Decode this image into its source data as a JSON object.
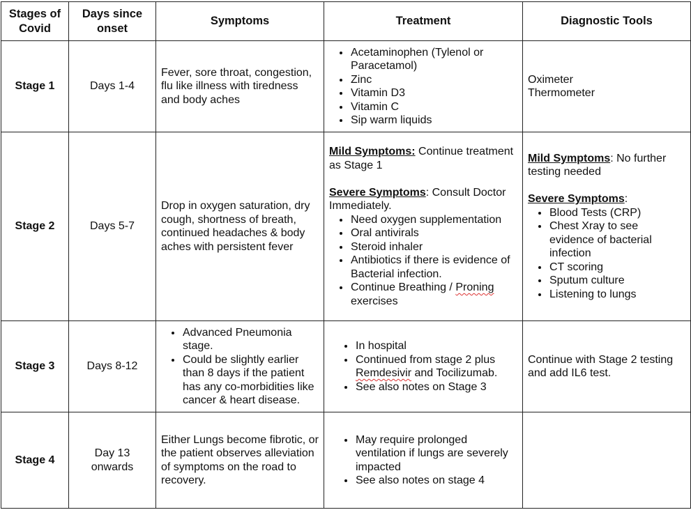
{
  "headers": [
    "Stages of Covid",
    "Days since onset",
    "Symptoms",
    "Treatment",
    "Diagnostic Tools"
  ],
  "rows": [
    {
      "stage": "Stage 1",
      "days": "Days 1-4",
      "symptoms": "Fever, sore throat, congestion, flu like illness with tiredness and body aches",
      "treatment": [
        "Acetaminophen (Tylenol or Paracetamol)",
        "Zinc",
        "Vitamin D3",
        "Vitamin C",
        "Sip warm liquids"
      ],
      "diagnostics": [
        "Oximeter",
        "Thermometer"
      ]
    },
    {
      "stage": "Stage 2",
      "days": "Days 5-7",
      "symptoms": "Drop in oxygen saturation, dry cough, shortness of breath, continued headaches & body aches with persistent fever",
      "treatment": {
        "mild_label": "Mild Symptoms:",
        "mild_text": " Continue treatment as Stage 1",
        "severe_label": "Severe Symptoms",
        "severe_text": ": Consult Doctor Immediately.",
        "items": [
          "Need oxygen supplementation",
          "Oral antivirals",
          "Steroid inhaler",
          "Antibiotics if there is evidence of Bacterial infection."
        ],
        "last_item_prefix": "Continue Breathing / ",
        "last_item_flagged": "Proning",
        "last_item_suffix": " exercises"
      },
      "diagnostics": {
        "mild_label": "Mild Symptoms",
        "mild_text": ": No further testing needed",
        "severe_label": "Severe Symptoms",
        "severe_text": ":",
        "items": [
          "Blood Tests (CRP)",
          "Chest Xray to see evidence of bacterial infection",
          "CT scoring",
          "Sputum culture",
          "Listening to lungs"
        ]
      }
    },
    {
      "stage": "Stage 3",
      "days": "Days 8-12",
      "symptoms": [
        "Advanced Pneumonia stage.",
        "Could be slightly earlier than 8 days if the patient has any co-morbidities like cancer & heart disease."
      ],
      "treatment": {
        "item1": "In hospital",
        "item2_prefix": "Continued from stage 2 plus ",
        "item2_flagged": "Remdesivir",
        "item2_suffix": " and Tocilizumab.",
        "item3": "See also notes on Stage 3"
      },
      "diagnostics": "Continue with Stage 2 testing and add IL6 test."
    },
    {
      "stage": "Stage 4",
      "days": "Day 13 onwards",
      "symptoms": "Either Lungs become fibrotic, or the patient observes alleviation of symptoms on the road to recovery.",
      "treatment": [
        "May require prolonged ventilation if lungs are severely impacted",
        "See also notes on stage 4"
      ],
      "diagnostics": ""
    }
  ]
}
